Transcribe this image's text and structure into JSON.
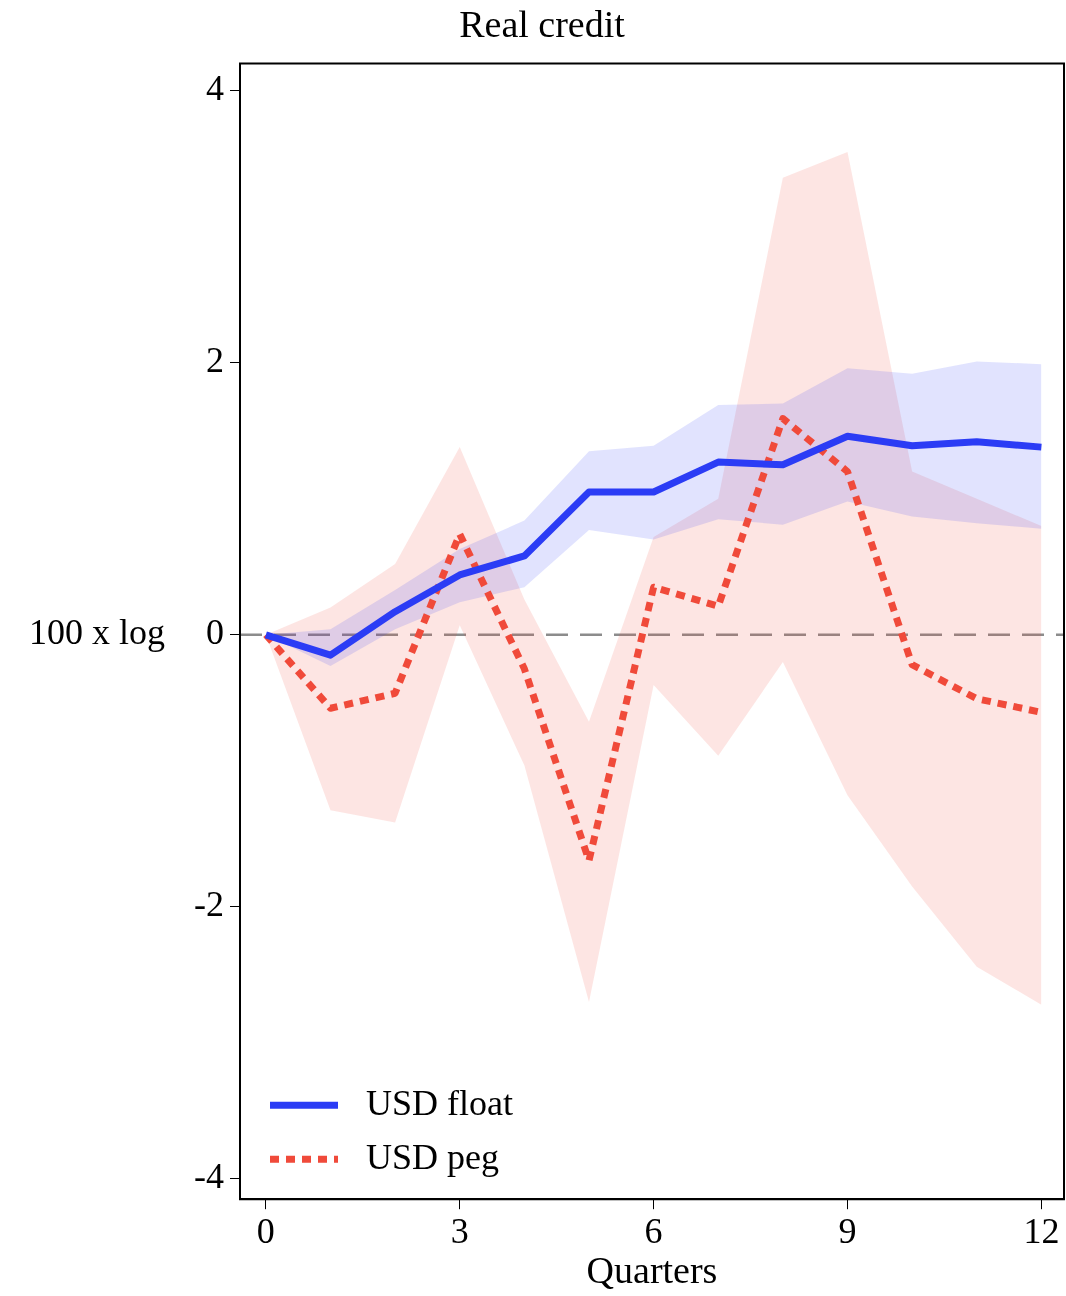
{
  "chart_data": {
    "type": "line",
    "title": "Real credit",
    "xlabel": "Quarters",
    "ylabel": "100 x log",
    "x": [
      0,
      1,
      2,
      3,
      4,
      5,
      6,
      7,
      8,
      9,
      10,
      11,
      12
    ],
    "xlim": [
      -0.4,
      12.35
    ],
    "xticks": [
      0,
      3,
      6,
      9,
      12
    ],
    "ylim": [
      -4.15,
      4.2
    ],
    "yticks": [
      -4,
      -2,
      0,
      2,
      4
    ],
    "grid": false,
    "legend": "bottom left",
    "marker": "none",
    "ref_lines": [
      {
        "axis": "y",
        "value": 0,
        "color": "#8c8c8c",
        "line_style": "dashed"
      }
    ],
    "series": [
      {
        "name": "USD float",
        "color": "#2b3cf5",
        "line_style": "solid",
        "values": [
          0,
          -0.15,
          0.17,
          0.44,
          0.58,
          1.05,
          1.05,
          1.27,
          1.25,
          1.46,
          1.39,
          1.42,
          1.38
        ],
        "lower": [
          0,
          -0.23,
          0.04,
          0.24,
          0.35,
          0.77,
          0.7,
          0.85,
          0.81,
          0.98,
          0.87,
          0.82,
          0.78
        ],
        "upper": [
          0,
          0.04,
          0.33,
          0.63,
          0.84,
          1.35,
          1.39,
          1.69,
          1.7,
          1.96,
          1.92,
          2.01,
          1.99
        ]
      },
      {
        "name": "USD peg",
        "color": "#f04a3a",
        "line_style": "dotted",
        "values": [
          0,
          -0.54,
          -0.43,
          0.74,
          -0.25,
          -1.66,
          0.35,
          0.21,
          1.59,
          1.2,
          -0.22,
          -0.47,
          -0.57
        ],
        "lower": [
          0,
          -1.29,
          -1.38,
          0.07,
          -0.96,
          -2.7,
          -0.37,
          -0.89,
          -0.2,
          -1.18,
          -1.85,
          -2.44,
          -2.72
        ],
        "upper": [
          0,
          0.2,
          0.52,
          1.38,
          0.26,
          -0.64,
          0.72,
          1.0,
          3.36,
          3.55,
          1.2,
          1.0,
          0.8
        ]
      }
    ]
  }
}
